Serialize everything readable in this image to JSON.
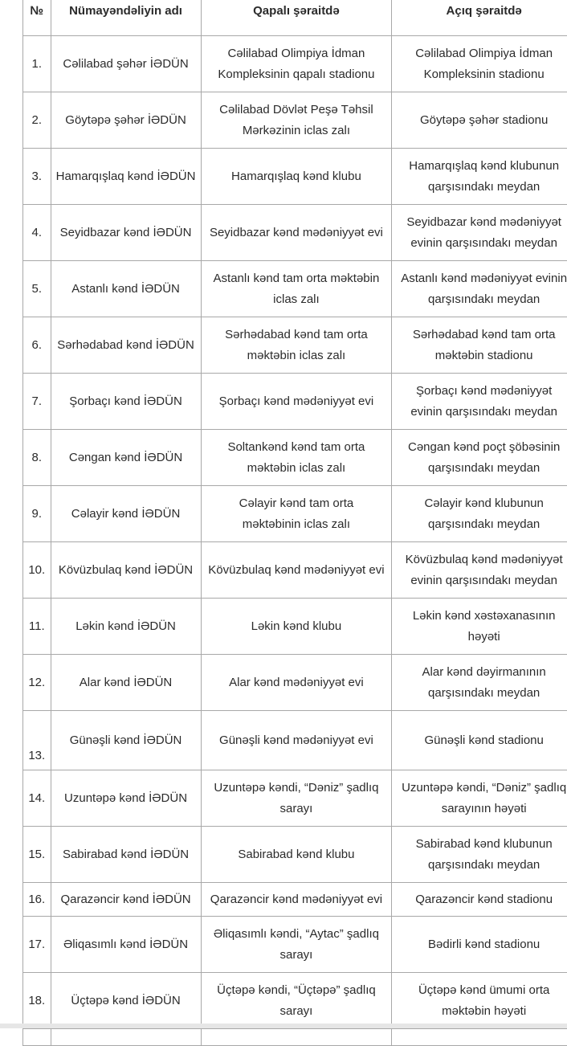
{
  "table": {
    "headers": [
      "№",
      "Nümayəndəliyin adı",
      "Qapalı şəraitdə",
      "Açıq şəraitdə"
    ],
    "rows": [
      {
        "no": "1.",
        "name": "Cəlilabad şəhər İƏDÜN",
        "closed": [
          "Cəlilabad Olimpiya İdman",
          "Kompleksinin qapalı stadionu"
        ],
        "open": [
          "Cəlilabad Olimpiya İdman",
          "Kompleksinin stadionu"
        ]
      },
      {
        "no": "2.",
        "name": "Göytəpə şəhər İƏDÜN",
        "closed": [
          "Cəlilabad Dövlət Peşə Təhsil",
          "Mərkəzinin iclas zalı"
        ],
        "open": [
          "Göytəpə şəhər stadionu"
        ]
      },
      {
        "no": "3.",
        "name": "Hamarqışlaq kənd İƏDÜN",
        "closed": [
          "Hamarqışlaq kənd klubu"
        ],
        "open": [
          "Hamarqışlaq kənd klubunun",
          "qarşısındakı meydan"
        ]
      },
      {
        "no": "4.",
        "name": "Seyidbazar kənd İƏDÜN",
        "closed": [
          "Seyidbazar kənd mədəniyyət evi"
        ],
        "open": [
          "Seyidbazar kənd mədəniyyət",
          "evinin qarşısındakı meydan"
        ]
      },
      {
        "no": "5.",
        "name": "Astanlı kənd İƏDÜN",
        "closed": [
          "Astanlı kənd tam orta məktəbin",
          "iclas zalı"
        ],
        "open": [
          "Astanlı kənd mədəniyyət evinin",
          "qarşısındakı meydan"
        ]
      },
      {
        "no": "6.",
        "name": "Sərhədabad kənd İƏDÜN",
        "closed": [
          "Sərhədabad kənd tam orta",
          "məktəbin iclas zalı"
        ],
        "open": [
          "Sərhədabad kənd tam orta",
          "məktəbin stadionu"
        ]
      },
      {
        "no": "7.",
        "name": "Şorbaçı kənd İƏDÜN",
        "closed": [
          "Şorbaçı  kənd mədəniyyət evi"
        ],
        "open": [
          "Şorbaçı  kənd mədəniyyət",
          "evinin qarşısındakı meydan"
        ]
      },
      {
        "no": "8.",
        "name": "Cəngan kənd İƏDÜN",
        "closed": [
          "Soltankənd kənd tam orta",
          "məktəbin iclas zalı"
        ],
        "open": [
          "Cəngan  kənd poçt şöbəsinin",
          "qarşısındakı meydan"
        ]
      },
      {
        "no": "9.",
        "name": "Cəlayir kənd İƏDÜN",
        "closed": [
          "Cəlayir kənd tam orta",
          "məktəbinin iclas zalı"
        ],
        "open": [
          "Cəlayir kənd klubunun",
          "qarşısındakı meydan"
        ]
      },
      {
        "no": "10.",
        "name": "Kövüzbulaq kənd İƏDÜN",
        "closed": [
          "Kövüzbulaq kənd mədəniyyət evi"
        ],
        "open": [
          "Kövüzbulaq kənd mədəniyyət",
          "evinin qarşısındakı meydan"
        ]
      },
      {
        "no": "11.",
        "name": "Ləkin kənd İƏDÜN",
        "closed": [
          "Ləkin kənd klubu"
        ],
        "open": [
          "Ləkin kənd xəstəxanasının",
          "həyəti"
        ]
      },
      {
        "no": "12.",
        "name": "Alar kənd İƏDÜN",
        "closed": [
          "Alar kənd mədəniyyət evi"
        ],
        "open": [
          "Alar kənd  dəyirmanının",
          "qarşısındakı meydan"
        ]
      },
      {
        "no": "13.",
        "name": "Günəşli kənd İƏDÜN",
        "closed": [
          "Günəşli  kənd mədəniyyət evi"
        ],
        "open": [
          "Günəşli  kənd stadionu"
        ]
      },
      {
        "no": "14.",
        "name": "Uzuntəpə kənd İƏDÜN",
        "closed": [
          "Uzuntəpə kəndi, “Dəniz” şadlıq",
          "sarayı"
        ],
        "open": [
          "Uzuntəpə kəndi, “Dəniz” şadlıq",
          "sarayının həyəti"
        ]
      },
      {
        "no": "15.",
        "name": "Sabirabad kənd İƏDÜN",
        "closed": [
          "Sabirabad kənd klubu"
        ],
        "open": [
          "Sabirabad kənd klubunun",
          "qarşısındakı meydan"
        ]
      },
      {
        "no": "16.",
        "name": "Qarazəncir kənd İƏDÜN",
        "closed": [
          "Qarazəncir kənd mədəniyyət evi"
        ],
        "open": [
          "Qarazəncir kənd stadionu"
        ]
      },
      {
        "no": "17.",
        "name": "Əliqasımlı kənd İƏDÜN",
        "closed": [
          "Əliqasımlı  kəndi, “Aytac” şadlıq",
          "sarayı"
        ],
        "open": [
          "Bədirli kənd stadionu"
        ]
      },
      {
        "no": "18.",
        "name": "Üçtəpə kənd İƏDÜN",
        "closed": [
          "Üçtəpə kəndi, “Üçtəpə” şadlıq",
          "sarayı"
        ],
        "open": [
          "Üçtəpə kənd ümumi orta",
          "məktəbin həyəti"
        ]
      }
    ]
  }
}
